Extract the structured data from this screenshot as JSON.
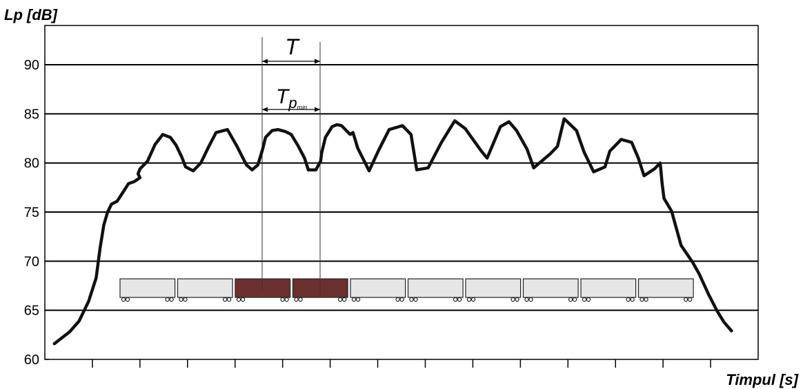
{
  "chart_data": {
    "type": "line",
    "ylabel": "Lp [dB]",
    "xlabel": "Timpul [s]",
    "ylim": [
      60,
      94
    ],
    "yticks": [
      60,
      65,
      70,
      75,
      80,
      85,
      90
    ],
    "ytick_labels": [
      "60",
      "65",
      "70",
      "75",
      "80",
      "85",
      "90"
    ],
    "gridlines": [
      65,
      70,
      75,
      80,
      85,
      90
    ],
    "grid": "horizontal",
    "x_ticks_count": 14,
    "line_color": "#111111",
    "series": [
      {
        "points": [
          [
            1.0,
            61.6
          ],
          [
            2.6,
            62.8
          ],
          [
            3.6,
            63.9
          ],
          [
            4.6,
            65.9
          ],
          [
            5.4,
            68.3
          ],
          [
            5.8,
            71.3
          ],
          [
            6.2,
            73.7
          ],
          [
            6.6,
            75.0
          ],
          [
            7.0,
            75.8
          ],
          [
            7.6,
            76.1
          ],
          [
            8.2,
            77.0
          ],
          [
            8.8,
            77.9
          ],
          [
            9.4,
            78.1
          ],
          [
            10.0,
            78.5
          ],
          [
            9.8,
            78.9
          ],
          [
            10.0,
            79.4
          ],
          [
            10.8,
            80.2
          ],
          [
            11.6,
            81.9
          ],
          [
            12.4,
            82.9
          ],
          [
            13.2,
            82.6
          ],
          [
            13.8,
            81.8
          ],
          [
            14.4,
            80.6
          ],
          [
            14.8,
            79.6
          ],
          [
            15.6,
            79.2
          ],
          [
            16.4,
            80.0
          ],
          [
            17.2,
            81.6
          ],
          [
            18.0,
            83.1
          ],
          [
            19.2,
            83.4
          ],
          [
            20.2,
            81.7
          ],
          [
            21.2,
            79.8
          ],
          [
            21.8,
            79.3
          ],
          [
            22.4,
            79.8
          ],
          [
            22.9,
            81.4
          ],
          [
            23.2,
            82.6
          ],
          [
            23.9,
            83.3
          ],
          [
            24.5,
            83.4
          ],
          [
            25.3,
            83.2
          ],
          [
            25.9,
            82.9
          ],
          [
            26.6,
            81.8
          ],
          [
            27.3,
            80.5
          ],
          [
            27.7,
            79.3
          ],
          [
            28.5,
            79.3
          ],
          [
            29.0,
            80.2
          ],
          [
            29.1,
            81.0
          ],
          [
            29.5,
            82.6
          ],
          [
            30.2,
            83.7
          ],
          [
            30.7,
            83.9
          ],
          [
            31.2,
            83.8
          ],
          [
            31.8,
            83.2
          ],
          [
            32.1,
            82.9
          ],
          [
            32.4,
            83.1
          ],
          [
            32.9,
            81.5
          ],
          [
            34.1,
            79.2
          ],
          [
            35.1,
            81.3
          ],
          [
            36.2,
            83.4
          ],
          [
            37.6,
            83.8
          ],
          [
            38.5,
            82.9
          ],
          [
            39.1,
            79.3
          ],
          [
            40.3,
            79.5
          ],
          [
            41.7,
            82.1
          ],
          [
            43.1,
            84.3
          ],
          [
            44.2,
            83.5
          ],
          [
            45.9,
            81.2
          ],
          [
            46.5,
            80.5
          ],
          [
            47.9,
            83.7
          ],
          [
            48.8,
            84.2
          ],
          [
            49.6,
            83.3
          ],
          [
            50.7,
            81.4
          ],
          [
            51.4,
            79.5
          ],
          [
            53.1,
            80.9
          ],
          [
            53.9,
            81.7
          ],
          [
            54.6,
            84.5
          ],
          [
            55.9,
            83.3
          ],
          [
            56.7,
            81.1
          ],
          [
            57.7,
            79.1
          ],
          [
            58.9,
            79.6
          ],
          [
            59.4,
            81.2
          ],
          [
            60.6,
            82.4
          ],
          [
            61.7,
            82.1
          ],
          [
            62.4,
            80.5
          ],
          [
            63.0,
            78.7
          ],
          [
            64.1,
            79.4
          ],
          [
            64.7,
            80.0
          ],
          [
            64.9,
            77.9
          ],
          [
            65.1,
            76.4
          ],
          [
            65.9,
            75.1
          ],
          [
            66.9,
            71.6
          ],
          [
            68.1,
            69.9
          ],
          [
            68.8,
            68.7
          ],
          [
            69.8,
            66.6
          ],
          [
            70.7,
            64.9
          ],
          [
            71.4,
            63.8
          ],
          [
            72.2,
            62.9
          ]
        ]
      }
    ],
    "annotations": {
      "period_label": "T",
      "tpmin_main": "T",
      "tpmin_sub": "p",
      "tpmin_subsub": "min"
    },
    "wagons": {
      "count": 10,
      "highlighted": [
        2,
        3
      ],
      "fill_color": "#e6e6e6",
      "highlight_color": "#6d3030"
    }
  }
}
